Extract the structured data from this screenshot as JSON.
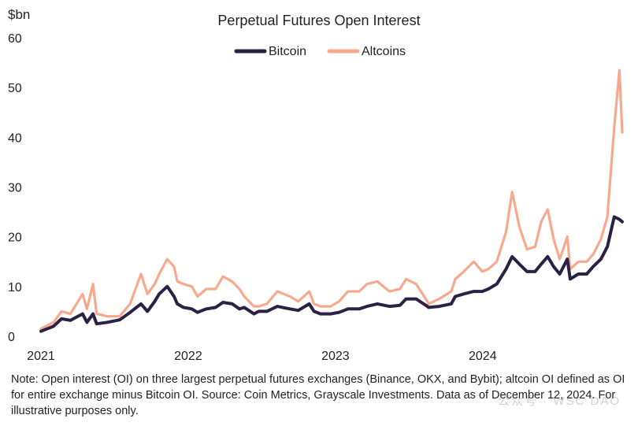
{
  "chart_data": {
    "type": "line",
    "title": "Perpetual Futures Open Interest",
    "unit_label": "$bn",
    "ylim": [
      0,
      60
    ],
    "y_ticks": [
      "0",
      "10",
      "20",
      "30",
      "40",
      "50",
      "60"
    ],
    "x_range": [
      "2021-01-01",
      "2024-12-12"
    ],
    "x_ticks": [
      {
        "label": "2021",
        "date": "2021-01-01"
      },
      {
        "label": "2022",
        "date": "2022-01-01"
      },
      {
        "label": "2023",
        "date": "2023-01-01"
      },
      {
        "label": "2024",
        "date": "2024-01-01"
      }
    ],
    "legend_position": "top-center",
    "grid": false,
    "series": [
      {
        "name": "Bitcoin",
        "color": "#2a2145",
        "points": [
          [
            "2021-01-01",
            1.0
          ],
          [
            "2021-02-01",
            2.0
          ],
          [
            "2021-02-21",
            3.5
          ],
          [
            "2021-03-15",
            3.2
          ],
          [
            "2021-04-14",
            4.5
          ],
          [
            "2021-04-25",
            2.8
          ],
          [
            "2021-05-10",
            4.5
          ],
          [
            "2021-05-19",
            2.5
          ],
          [
            "2021-06-15",
            2.8
          ],
          [
            "2021-07-15",
            3.3
          ],
          [
            "2021-08-10",
            4.8
          ],
          [
            "2021-09-06",
            6.5
          ],
          [
            "2021-09-22",
            5.0
          ],
          [
            "2021-10-10",
            7.0
          ],
          [
            "2021-10-21",
            8.5
          ],
          [
            "2021-11-10",
            10.0
          ],
          [
            "2021-11-27",
            8.0
          ],
          [
            "2021-12-05",
            6.5
          ],
          [
            "2021-12-20",
            5.8
          ],
          [
            "2022-01-10",
            5.5
          ],
          [
            "2022-01-24",
            4.8
          ],
          [
            "2022-02-15",
            5.5
          ],
          [
            "2022-03-10",
            5.8
          ],
          [
            "2022-03-28",
            6.8
          ],
          [
            "2022-04-20",
            6.5
          ],
          [
            "2022-05-08",
            5.5
          ],
          [
            "2022-05-20",
            5.8
          ],
          [
            "2022-06-13",
            4.5
          ],
          [
            "2022-06-25",
            5.0
          ],
          [
            "2022-07-15",
            5.0
          ],
          [
            "2022-08-10",
            6.0
          ],
          [
            "2022-09-10",
            5.5
          ],
          [
            "2022-10-01",
            5.2
          ],
          [
            "2022-10-28",
            6.5
          ],
          [
            "2022-11-09",
            5.0
          ],
          [
            "2022-11-25",
            4.5
          ],
          [
            "2022-12-20",
            4.5
          ],
          [
            "2023-01-10",
            4.8
          ],
          [
            "2023-02-01",
            5.5
          ],
          [
            "2023-03-01",
            5.5
          ],
          [
            "2023-03-20",
            6.0
          ],
          [
            "2023-04-15",
            6.5
          ],
          [
            "2023-05-15",
            6.0
          ],
          [
            "2023-06-10",
            6.2
          ],
          [
            "2023-06-25",
            7.5
          ],
          [
            "2023-07-20",
            7.5
          ],
          [
            "2023-08-17",
            6.0
          ],
          [
            "2023-08-20",
            5.8
          ],
          [
            "2023-09-15",
            6.0
          ],
          [
            "2023-10-15",
            6.5
          ],
          [
            "2023-10-25",
            8.0
          ],
          [
            "2023-11-15",
            8.5
          ],
          [
            "2023-12-10",
            9.0
          ],
          [
            "2023-12-31",
            9.0
          ],
          [
            "2024-01-15",
            9.5
          ],
          [
            "2024-02-05",
            10.5
          ],
          [
            "2024-02-28",
            13.5
          ],
          [
            "2024-03-14",
            16.0
          ],
          [
            "2024-04-01",
            14.5
          ],
          [
            "2024-04-20",
            13.0
          ],
          [
            "2024-05-10",
            13.0
          ],
          [
            "2024-05-25",
            14.5
          ],
          [
            "2024-06-10",
            16.0
          ],
          [
            "2024-06-25",
            14.0
          ],
          [
            "2024-07-10",
            12.5
          ],
          [
            "2024-07-29",
            15.5
          ],
          [
            "2024-08-05",
            11.5
          ],
          [
            "2024-08-25",
            12.5
          ],
          [
            "2024-09-15",
            12.5
          ],
          [
            "2024-10-01",
            14.0
          ],
          [
            "2024-10-20",
            15.5
          ],
          [
            "2024-11-05",
            18.0
          ],
          [
            "2024-11-22",
            24.0
          ],
          [
            "2024-12-05",
            23.5
          ],
          [
            "2024-12-12",
            23.0
          ]
        ]
      },
      {
        "name": "Altcoins",
        "color": "#f7a98e",
        "points": [
          [
            "2021-01-01",
            1.5
          ],
          [
            "2021-02-01",
            2.8
          ],
          [
            "2021-02-21",
            5.0
          ],
          [
            "2021-03-15",
            4.5
          ],
          [
            "2021-04-14",
            8.5
          ],
          [
            "2021-04-25",
            5.5
          ],
          [
            "2021-05-10",
            10.5
          ],
          [
            "2021-05-19",
            4.5
          ],
          [
            "2021-06-15",
            4.0
          ],
          [
            "2021-07-15",
            4.0
          ],
          [
            "2021-08-10",
            6.5
          ],
          [
            "2021-09-06",
            12.5
          ],
          [
            "2021-09-22",
            8.5
          ],
          [
            "2021-10-10",
            10.5
          ],
          [
            "2021-10-21",
            12.5
          ],
          [
            "2021-11-10",
            15.5
          ],
          [
            "2021-11-27",
            14.0
          ],
          [
            "2021-12-05",
            11.0
          ],
          [
            "2021-12-20",
            10.5
          ],
          [
            "2022-01-10",
            10.0
          ],
          [
            "2022-01-24",
            8.0
          ],
          [
            "2022-02-15",
            9.5
          ],
          [
            "2022-03-10",
            9.5
          ],
          [
            "2022-03-28",
            12.0
          ],
          [
            "2022-04-20",
            11.0
          ],
          [
            "2022-05-08",
            9.5
          ],
          [
            "2022-05-20",
            8.0
          ],
          [
            "2022-06-13",
            6.0
          ],
          [
            "2022-06-25",
            6.0
          ],
          [
            "2022-07-15",
            6.5
          ],
          [
            "2022-08-10",
            9.0
          ],
          [
            "2022-09-10",
            8.0
          ],
          [
            "2022-10-01",
            7.0
          ],
          [
            "2022-10-28",
            9.0
          ],
          [
            "2022-11-09",
            6.5
          ],
          [
            "2022-11-25",
            6.0
          ],
          [
            "2022-12-20",
            6.0
          ],
          [
            "2023-01-10",
            7.0
          ],
          [
            "2023-02-01",
            9.0
          ],
          [
            "2023-03-01",
            9.0
          ],
          [
            "2023-03-20",
            10.5
          ],
          [
            "2023-04-15",
            11.0
          ],
          [
            "2023-05-15",
            9.0
          ],
          [
            "2023-06-10",
            9.5
          ],
          [
            "2023-06-25",
            11.5
          ],
          [
            "2023-07-20",
            10.5
          ],
          [
            "2023-08-17",
            7.0
          ],
          [
            "2023-08-20",
            6.5
          ],
          [
            "2023-09-15",
            7.5
          ],
          [
            "2023-10-15",
            9.0
          ],
          [
            "2023-10-25",
            11.5
          ],
          [
            "2023-11-15",
            13.0
          ],
          [
            "2023-12-10",
            15.0
          ],
          [
            "2023-12-31",
            13.0
          ],
          [
            "2024-01-15",
            13.5
          ],
          [
            "2024-02-05",
            15.0
          ],
          [
            "2024-02-28",
            21.0
          ],
          [
            "2024-03-14",
            29.0
          ],
          [
            "2024-04-01",
            22.0
          ],
          [
            "2024-04-20",
            17.5
          ],
          [
            "2024-05-10",
            18.0
          ],
          [
            "2024-05-25",
            23.0
          ],
          [
            "2024-06-10",
            25.5
          ],
          [
            "2024-06-25",
            19.5
          ],
          [
            "2024-07-10",
            15.5
          ],
          [
            "2024-07-29",
            20.0
          ],
          [
            "2024-08-05",
            13.5
          ],
          [
            "2024-08-25",
            15.0
          ],
          [
            "2024-09-15",
            15.0
          ],
          [
            "2024-10-01",
            16.5
          ],
          [
            "2024-10-20",
            19.5
          ],
          [
            "2024-11-05",
            24.0
          ],
          [
            "2024-11-22",
            42.0
          ],
          [
            "2024-12-05",
            53.5
          ],
          [
            "2024-12-12",
            41.0
          ]
        ]
      }
    ]
  },
  "footnote": "Note: Open interest (OI) on three largest perpetual futures exchanges (Binance, OKX, and Bybit); altcoin OI defined as OI for entire exchange minus Bitcoin OI. Source: Coin Metrics, Grayscale Investments. Data as of December 12, 2024. For illustrative purposes only.",
  "watermark": "公众号 · WSC DAO"
}
